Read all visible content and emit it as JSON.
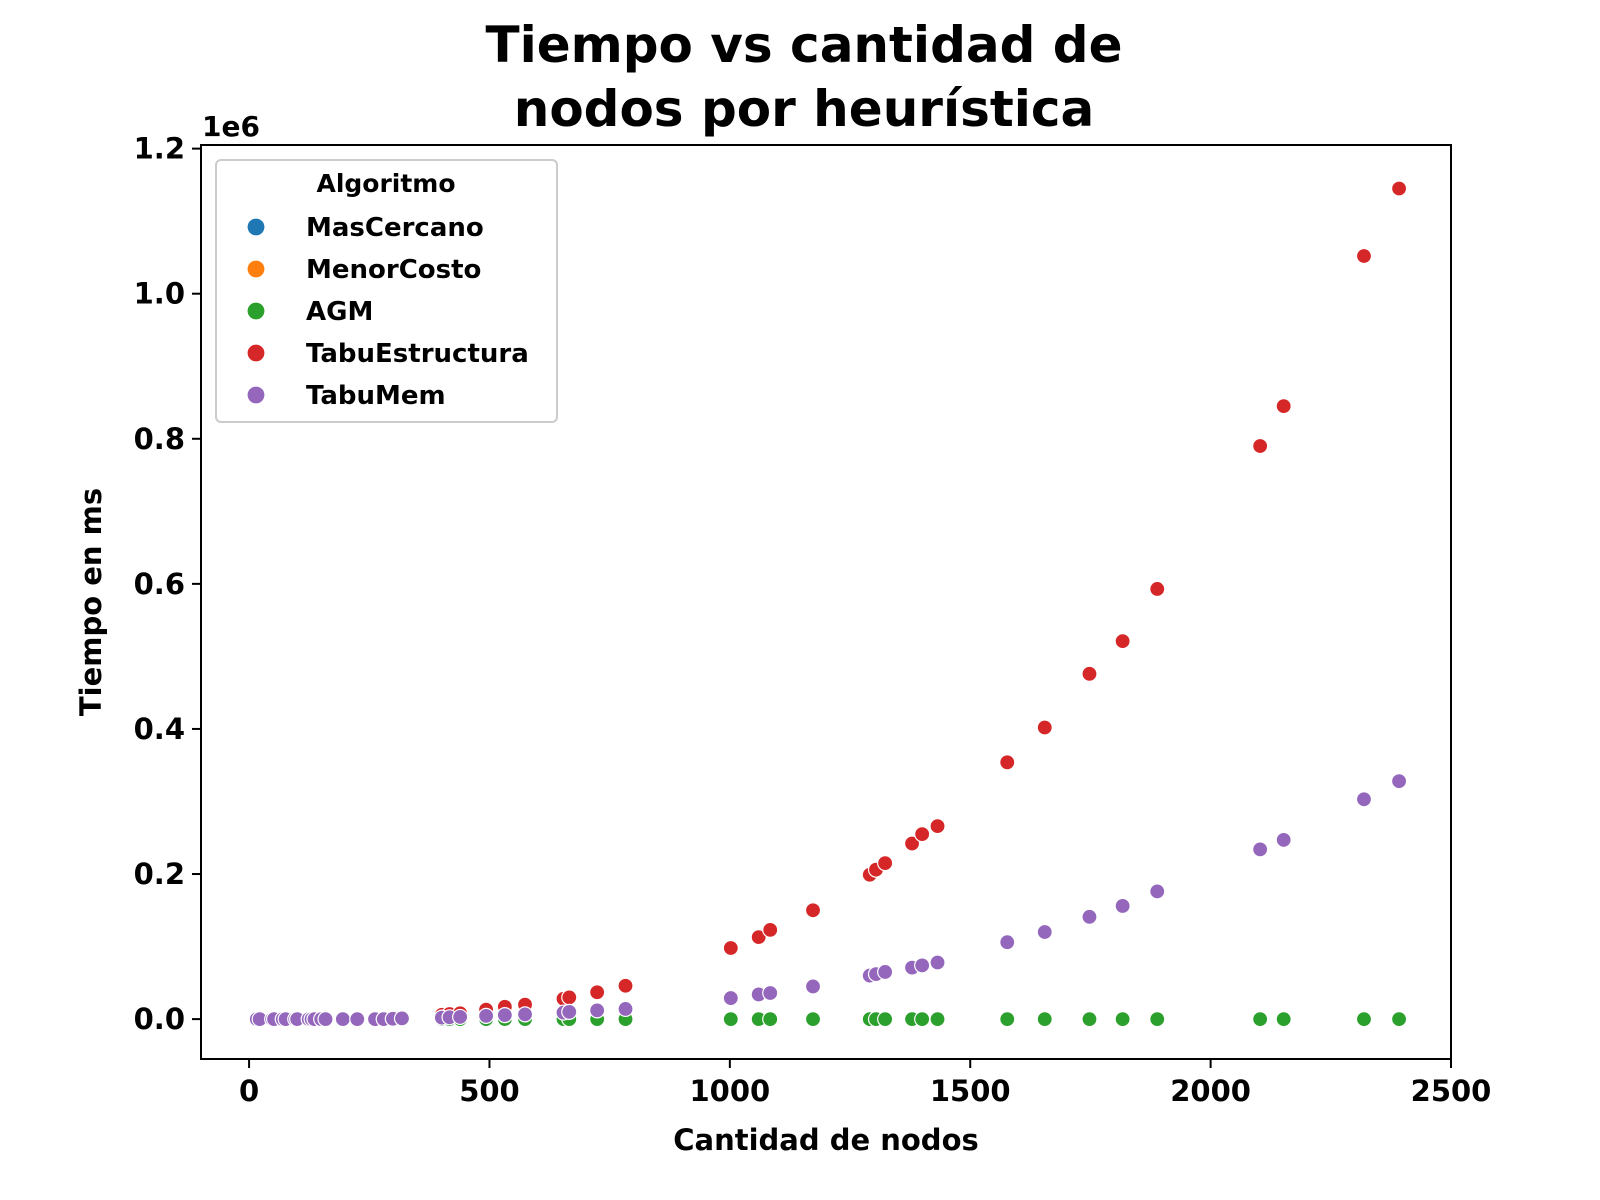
{
  "chart_data": {
    "type": "scatter",
    "title_lines": [
      "Tiempo vs cantidad de",
      "nodos por heurística"
    ],
    "xlabel": "Cantidad de nodos",
    "ylabel": "Tiempo en ms",
    "y_offset_label": "1e6",
    "xlim": [
      -100,
      2500
    ],
    "ylim": [
      -55000,
      1205000
    ],
    "xticks": [
      0,
      500,
      1000,
      1500,
      2000,
      2500
    ],
    "xtick_labels": [
      "0",
      "500",
      "1000",
      "1500",
      "2000",
      "2500"
    ],
    "yticks": [
      0,
      200000,
      400000,
      600000,
      800000,
      1000000,
      1200000
    ],
    "ytick_labels": [
      "0.0",
      "0.2",
      "0.4",
      "0.6",
      "0.8",
      "1.0",
      "1.2"
    ],
    "grid": false,
    "legend": {
      "title": "Algoritmo",
      "placement": "top-left"
    },
    "series": [
      {
        "name": "MasCercano",
        "color": "#1f77b4",
        "points": []
      },
      {
        "name": "MenorCosto",
        "color": "#ff7f0e",
        "points": []
      },
      {
        "name": "AGM",
        "color": "#2ca02c",
        "points": [
          [
            16,
            0
          ],
          [
            22,
            0
          ],
          [
            48,
            0
          ],
          [
            52,
            0
          ],
          [
            70,
            0
          ],
          [
            76,
            0
          ],
          [
            96,
            0
          ],
          [
            100,
            0
          ],
          [
            124,
            0
          ],
          [
            130,
            0
          ],
          [
            136,
            0
          ],
          [
            150,
            0
          ],
          [
            159,
            0
          ],
          [
            195,
            0
          ],
          [
            225,
            0
          ],
          [
            262,
            0
          ],
          [
            280,
            0
          ],
          [
            299,
            0
          ],
          [
            318,
            0
          ],
          [
            401,
            0
          ],
          [
            417,
            0
          ],
          [
            439,
            0
          ],
          [
            493,
            0
          ],
          [
            532,
            0
          ],
          [
            574,
            0
          ],
          [
            654,
            0
          ],
          [
            666,
            0
          ],
          [
            724,
            0
          ],
          [
            783,
            0
          ],
          [
            1002,
            0
          ],
          [
            1060,
            0
          ],
          [
            1084,
            0
          ],
          [
            1173,
            0
          ],
          [
            1291,
            0
          ],
          [
            1304,
            0
          ],
          [
            1323,
            0
          ],
          [
            1379,
            0
          ],
          [
            1400,
            0
          ],
          [
            1432,
            0
          ],
          [
            1577,
            0
          ],
          [
            1655,
            0
          ],
          [
            1748,
            0
          ],
          [
            1817,
            0
          ],
          [
            1889,
            0
          ],
          [
            2103,
            0
          ],
          [
            2152,
            0
          ],
          [
            2319,
            0
          ],
          [
            2392,
            0
          ]
        ]
      },
      {
        "name": "TabuEstructura",
        "color": "#d62728",
        "points": [
          [
            16,
            0
          ],
          [
            22,
            0
          ],
          [
            48,
            0
          ],
          [
            52,
            0
          ],
          [
            70,
            0
          ],
          [
            76,
            0
          ],
          [
            96,
            0
          ],
          [
            100,
            0
          ],
          [
            124,
            0
          ],
          [
            130,
            0
          ],
          [
            136,
            0
          ],
          [
            150,
            0
          ],
          [
            159,
            0
          ],
          [
            195,
            0
          ],
          [
            225,
            0
          ],
          [
            262,
            0
          ],
          [
            280,
            1000
          ],
          [
            299,
            1500
          ],
          [
            318,
            2000
          ],
          [
            401,
            6000
          ],
          [
            417,
            7000
          ],
          [
            439,
            8000
          ],
          [
            493,
            13000
          ],
          [
            532,
            17000
          ],
          [
            574,
            20000
          ],
          [
            654,
            28000
          ],
          [
            666,
            30000
          ],
          [
            724,
            37000
          ],
          [
            783,
            46000
          ],
          [
            1002,
            98000
          ],
          [
            1060,
            113000
          ],
          [
            1084,
            123000
          ],
          [
            1173,
            150000
          ],
          [
            1291,
            199000
          ],
          [
            1304,
            206000
          ],
          [
            1323,
            215000
          ],
          [
            1379,
            242000
          ],
          [
            1400,
            255000
          ],
          [
            1432,
            266000
          ],
          [
            1577,
            354000
          ],
          [
            1655,
            402000
          ],
          [
            1748,
            476000
          ],
          [
            1817,
            521000
          ],
          [
            1889,
            593000
          ],
          [
            2103,
            790000
          ],
          [
            2152,
            845000
          ],
          [
            2319,
            1052000
          ],
          [
            2392,
            1145000
          ]
        ]
      },
      {
        "name": "TabuMem",
        "color": "#9467bd",
        "points": [
          [
            16,
            0
          ],
          [
            22,
            0
          ],
          [
            48,
            0
          ],
          [
            52,
            0
          ],
          [
            70,
            0
          ],
          [
            76,
            0
          ],
          [
            96,
            0
          ],
          [
            100,
            0
          ],
          [
            124,
            0
          ],
          [
            130,
            0
          ],
          [
            136,
            0
          ],
          [
            150,
            0
          ],
          [
            159,
            0
          ],
          [
            195,
            0
          ],
          [
            225,
            0
          ],
          [
            262,
            0
          ],
          [
            280,
            0
          ],
          [
            299,
            500
          ],
          [
            318,
            1000
          ],
          [
            401,
            2000
          ],
          [
            417,
            2500
          ],
          [
            439,
            3000
          ],
          [
            493,
            4500
          ],
          [
            532,
            5500
          ],
          [
            574,
            6500
          ],
          [
            654,
            9000
          ],
          [
            666,
            10000
          ],
          [
            724,
            12000
          ],
          [
            783,
            14000
          ],
          [
            1002,
            29000
          ],
          [
            1060,
            34000
          ],
          [
            1084,
            36000
          ],
          [
            1173,
            45000
          ],
          [
            1291,
            60000
          ],
          [
            1304,
            62000
          ],
          [
            1323,
            65000
          ],
          [
            1379,
            71000
          ],
          [
            1400,
            74000
          ],
          [
            1432,
            78000
          ],
          [
            1577,
            106000
          ],
          [
            1655,
            120000
          ],
          [
            1748,
            141000
          ],
          [
            1817,
            156000
          ],
          [
            1889,
            176000
          ],
          [
            2103,
            234000
          ],
          [
            2152,
            247000
          ],
          [
            2319,
            303000
          ],
          [
            2392,
            328000
          ]
        ]
      }
    ]
  }
}
